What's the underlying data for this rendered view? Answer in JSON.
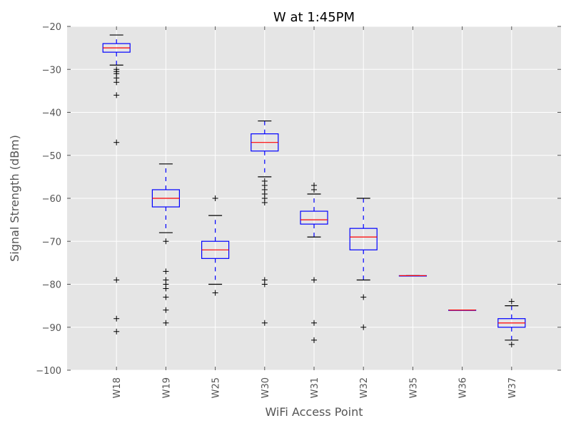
{
  "chart_data": {
    "type": "boxplot",
    "title": "W at 1:45PM",
    "xlabel": "WiFi Access Point",
    "ylabel": "Signal Strength (dBm)",
    "ylim": [
      -100,
      -20
    ],
    "yticks": [
      -20,
      -30,
      -40,
      -50,
      -60,
      -70,
      -80,
      -90,
      -100
    ],
    "grid": true,
    "categories": [
      "W18",
      "W19",
      "W25",
      "W30",
      "W31",
      "W32",
      "W35",
      "W36",
      "W37"
    ],
    "boxes": [
      {
        "name": "W18",
        "whisker_low": -29,
        "q1": -26,
        "median": -25,
        "q3": -24,
        "whisker_high": -22,
        "outliers": [
          -30,
          -30.5,
          -31,
          -32,
          -33,
          -36,
          -47,
          -79,
          -88,
          -91
        ]
      },
      {
        "name": "W19",
        "whisker_low": -68,
        "q1": -62,
        "median": -60,
        "q3": -58,
        "whisker_high": -52,
        "outliers": [
          -70,
          -77,
          -79,
          -80,
          -81,
          -83,
          -86,
          -89
        ]
      },
      {
        "name": "W25",
        "whisker_low": -80,
        "q1": -74,
        "median": -72,
        "q3": -70,
        "whisker_high": -64,
        "outliers": [
          -60,
          -82
        ]
      },
      {
        "name": "W30",
        "whisker_low": -55,
        "q1": -49,
        "median": -47,
        "q3": -45,
        "whisker_high": -42,
        "outliers": [
          -56,
          -57,
          -58,
          -59,
          -60,
          -61,
          -79,
          -80,
          -89
        ]
      },
      {
        "name": "W31",
        "whisker_low": -69,
        "q1": -66,
        "median": -65,
        "q3": -63,
        "whisker_high": -59,
        "outliers": [
          -57,
          -58,
          -79,
          -89,
          -93
        ]
      },
      {
        "name": "W32",
        "whisker_low": -79,
        "q1": -72,
        "median": -69,
        "q3": -67,
        "whisker_high": -60,
        "outliers": [
          -83,
          -90
        ]
      },
      {
        "name": "W35",
        "whisker_low": -78,
        "q1": -78,
        "median": -78,
        "q3": -78,
        "whisker_high": -78,
        "outliers": []
      },
      {
        "name": "W36",
        "whisker_low": -86,
        "q1": -86,
        "median": -86,
        "q3": -86,
        "whisker_high": -86,
        "outliers": []
      },
      {
        "name": "W37",
        "whisker_low": -93,
        "q1": -90,
        "median": -89,
        "q3": -88,
        "whisker_high": -85,
        "outliers": [
          -84,
          -94
        ]
      }
    ]
  },
  "colors": {
    "plot_bg": "#e5e5e5",
    "grid": "#ffffff",
    "box": "#0000ff",
    "median": "#ff0000",
    "whisker": "#0000ff",
    "cap": "#000000",
    "outlier": "#000000"
  }
}
